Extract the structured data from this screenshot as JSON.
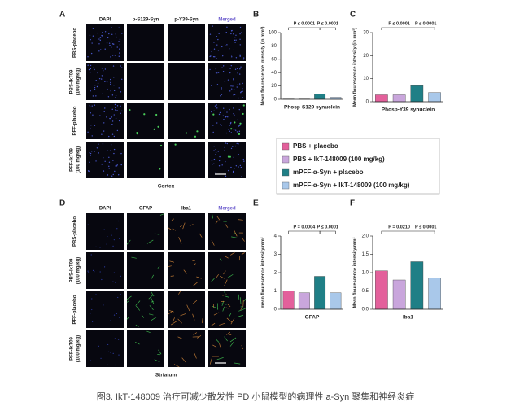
{
  "panel_a": {
    "label": "A",
    "columns": [
      "DAPI",
      "p-S129-Syn",
      "p-Y39-Syn",
      "Merged"
    ],
    "rows": [
      [
        "PBS-placebo"
      ],
      [
        "PBS-IkT09",
        "(100 mg/kg)"
      ],
      [
        "PFF-placebo"
      ],
      [
        "PFF-IkT09",
        "(100 mg/kg)"
      ]
    ],
    "region": "Cortex"
  },
  "panel_d": {
    "label": "D",
    "columns": [
      "DAPI",
      "GFAP",
      "Iba1",
      "Merged"
    ],
    "rows": [
      [
        "PBS-placebo"
      ],
      [
        "PBS-IkT09",
        "(100 mg/kg)"
      ],
      [
        "PFF-placebo"
      ],
      [
        "PFF-IkT09",
        "(100 mg/kg)"
      ]
    ],
    "region": "Striatum"
  },
  "chart_data": [
    {
      "type": "bar",
      "label": "B",
      "ylabel": "Mean flourescence intensity (in mm²)",
      "xlabel": "Phosp-S129 synuclein",
      "values": [
        0.5,
        0.5,
        8,
        3
      ],
      "colors": [
        "#e3609b",
        "#c9a6dc",
        "#1f7f86",
        "#a9c8ea"
      ],
      "ylim": [
        0,
        100
      ],
      "yticks": [
        0,
        20,
        40,
        60,
        80,
        100
      ],
      "annotations": [
        "P ≤ 0.0001",
        "P ≤ 0.0001"
      ]
    },
    {
      "type": "bar",
      "label": "C",
      "ylabel": "Mean flourescence intensity (in mm²)",
      "xlabel": "Phosp-Y39 synuclein",
      "values": [
        3,
        3,
        7,
        4
      ],
      "colors": [
        "#e3609b",
        "#c9a6dc",
        "#1f7f86",
        "#a9c8ea"
      ],
      "ylim": [
        0,
        30
      ],
      "yticks": [
        0,
        10,
        20,
        30
      ],
      "annotations": [
        "P ≤ 0.0001",
        "P ≤ 0.0001"
      ]
    },
    {
      "type": "bar",
      "label": "E",
      "ylabel": "mean flourescence intensity/mm²",
      "xlabel": "GFAP",
      "values": [
        1.0,
        0.9,
        1.8,
        0.9
      ],
      "colors": [
        "#e3609b",
        "#c9a6dc",
        "#1f7f86",
        "#a9c8ea"
      ],
      "ylim": [
        0,
        4
      ],
      "yticks": [
        0,
        1,
        2,
        3,
        4
      ],
      "annotations": [
        "P = 0.0004",
        "P ≤ 0.0001"
      ]
    },
    {
      "type": "bar",
      "label": "F",
      "ylabel": "Mean flourescence intensity/mm²",
      "xlabel": "Iba1",
      "values": [
        1.05,
        0.8,
        1.3,
        0.85
      ],
      "colors": [
        "#e3609b",
        "#c9a6dc",
        "#1f7f86",
        "#a9c8ea"
      ],
      "ylim": [
        0,
        2
      ],
      "yticks": [
        {
          "value": 0,
          "label": "0.0"
        },
        0.5,
        {
          "value": 1,
          "label": "1.0"
        },
        1.5,
        {
          "value": 2,
          "label": "2.0"
        }
      ],
      "annotations": [
        "P = 0.0210",
        "P ≤ 0.0001"
      ]
    }
  ],
  "legend": {
    "items": [
      {
        "name": "PBS + placebo",
        "color": "#e3609b"
      },
      {
        "name": "PBS + IkT-148009 (100 mg/kg)",
        "color": "#c9a6dc"
      },
      {
        "name": "mPFF-α-Syn + placebo",
        "color": "#1f7f86"
      },
      {
        "name": "mPFF-α-Syn + IkT-148009 (100 mg/kg)",
        "color": "#a9c8ea"
      }
    ]
  },
  "caption": "图3. IkT-148009 治疗可减少散发性 PD 小鼠模型的病理性 a-Syn 聚集和神经炎症"
}
